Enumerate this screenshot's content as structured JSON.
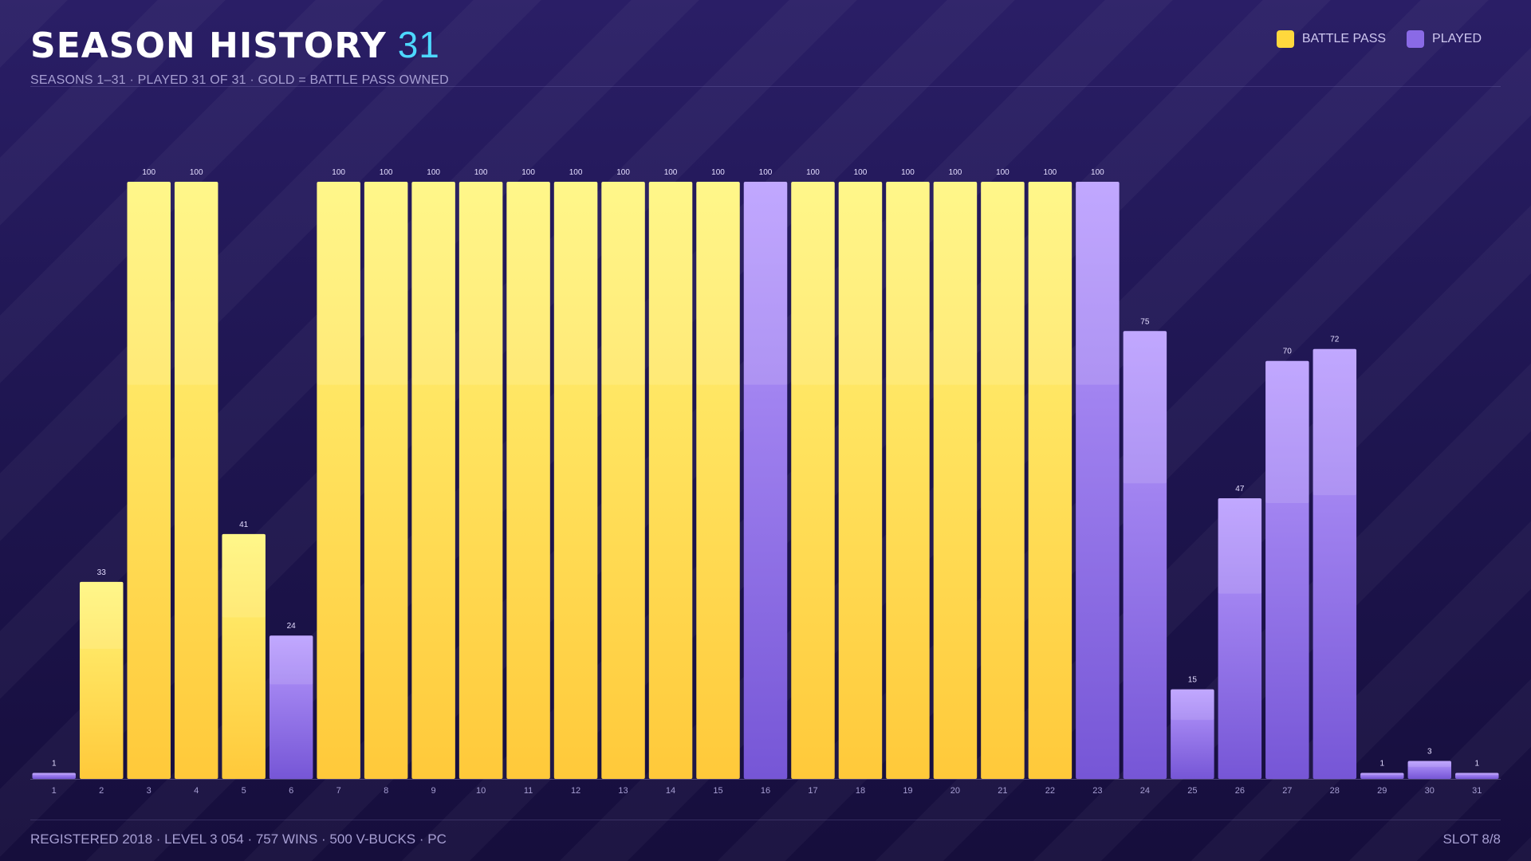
{
  "header": {
    "title": "SEASON HISTORY",
    "count": "31",
    "subtitle": "SEASONS 1–31 · PLAYED 31 OF 31 · GOLD = BATTLE PASS OWNED"
  },
  "legend": {
    "items": [
      {
        "label": "BATTLE PASS",
        "color": "#ffd83d"
      },
      {
        "label": "PLAYED",
        "color": "#8a6ae6"
      }
    ]
  },
  "footer": {
    "left": "REGISTERED 2018 · LEVEL 3 054 · 757 WINS · 500 V-BUCKS · PC",
    "right": "SLOT 8/8"
  },
  "colors": {
    "gold_top": "#fff67a",
    "gold_bottom": "#ffc93a",
    "purple_top": "#b99cff",
    "purple_bottom": "#7656d6"
  },
  "chart_data": {
    "type": "bar",
    "categories": [
      "1",
      "2",
      "3",
      "4",
      "5",
      "6",
      "7",
      "8",
      "9",
      "10",
      "11",
      "12",
      "13",
      "14",
      "15",
      "16",
      "17",
      "18",
      "19",
      "20",
      "21",
      "22",
      "23",
      "24",
      "25",
      "26",
      "27",
      "28",
      "29",
      "30",
      "31"
    ],
    "values": [
      1,
      33,
      100,
      100,
      41,
      24,
      100,
      100,
      100,
      100,
      100,
      100,
      100,
      100,
      100,
      100,
      100,
      100,
      100,
      100,
      100,
      100,
      100,
      75,
      15,
      47,
      70,
      72,
      1,
      3,
      1
    ],
    "battle_pass": [
      false,
      true,
      true,
      true,
      true,
      false,
      true,
      true,
      true,
      true,
      true,
      true,
      true,
      true,
      true,
      false,
      true,
      true,
      true,
      true,
      true,
      true,
      false,
      false,
      false,
      false,
      false,
      false,
      false,
      false,
      false
    ],
    "ylim": [
      0,
      100
    ],
    "grid": false,
    "legend_position": "top-right"
  }
}
